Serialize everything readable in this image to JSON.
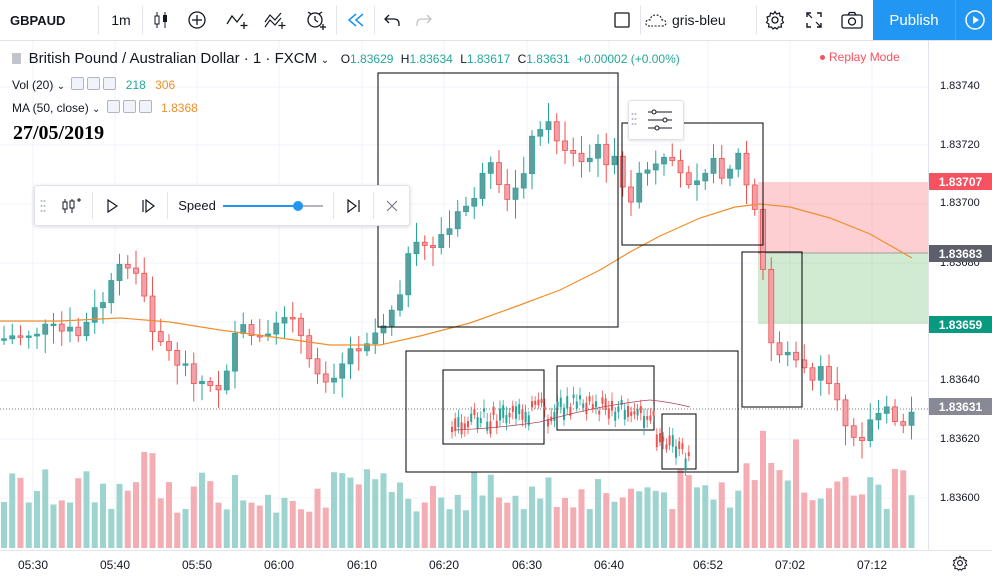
{
  "toolbar": {
    "symbol": "GBPAUD",
    "interval": "1m",
    "theme": "gris-bleu",
    "publish": "Publish"
  },
  "legend": {
    "title": "British Pound / Australian Dollar · 1 · FXCM",
    "open_label": "O",
    "open": "1.83629",
    "high_label": "H",
    "high": "1.83634",
    "low_label": "L",
    "low": "1.83617",
    "close_label": "C",
    "close": "1.83631",
    "change": "+0.00002 (+0.00%)",
    "vol_label": "Vol (20)",
    "vol_value1": "218",
    "vol_value2": "306",
    "ma_label": "MA (50, close)",
    "ma_value": "1.8368"
  },
  "annotation_date": "27/05/2019",
  "replay_mode": "Replay Mode",
  "replay_toolbar": {
    "speed_label": "Speed",
    "speed_fraction": 0.75
  },
  "price_axis": {
    "labels": [
      "1.83740",
      "1.83720",
      "1.83700",
      "1.83680",
      "1.83640",
      "1.83620",
      "1.83600"
    ],
    "tags": {
      "stop": "1.83707",
      "entry": "1.83683",
      "target": "1.83659",
      "last": "1.83631"
    }
  },
  "time_axis": {
    "labels": [
      "05:30",
      "05:40",
      "05:50",
      "06:00",
      "06:10",
      "06:20",
      "06:30",
      "06:40",
      "06:52",
      "07:02",
      "07:12"
    ]
  },
  "colors": {
    "up": "#26a69a",
    "down": "#ef5350",
    "ma": "#ef8f2b",
    "accent": "#2196f3"
  },
  "chart_data": {
    "type": "candlestick",
    "price_range": [
      1.8359,
      1.8375
    ],
    "moving_average": {
      "period": 50,
      "last": 1.8368
    }
  }
}
